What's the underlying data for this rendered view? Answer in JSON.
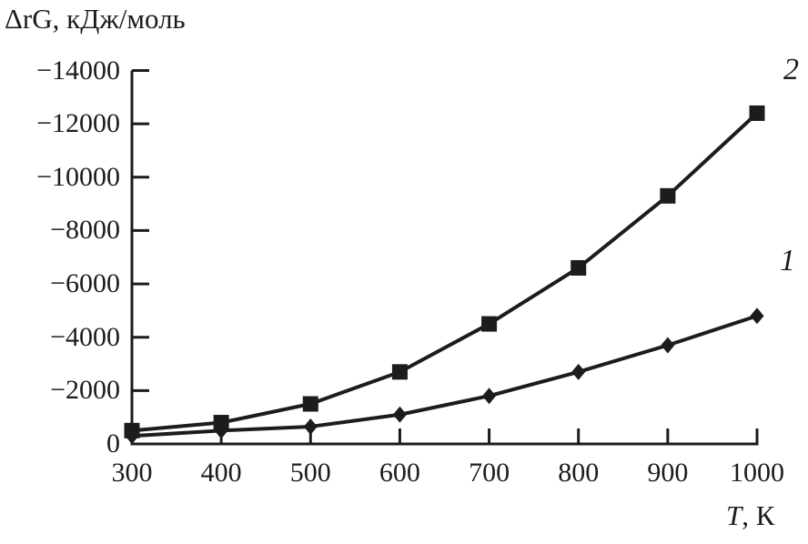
{
  "figure": {
    "y_axis_title": "ΔrG, кДж/моль",
    "x_axis_symbol": "T",
    "x_axis_suffix": ", К"
  },
  "colors": {
    "ink": "#1c1c1c",
    "background": "#ffffff"
  },
  "chart_data": {
    "type": "line",
    "title": "",
    "ylabel": "ΔrG, кДж/моль",
    "xlabel": "T, К",
    "x": [
      300,
      400,
      500,
      600,
      700,
      800,
      900,
      1000
    ],
    "xticklabels": [
      "300",
      "400",
      "500",
      "600",
      "700",
      "800",
      "900",
      "1000"
    ],
    "yticks": [
      0,
      -2000,
      -4000,
      -6000,
      -8000,
      -10000,
      -12000,
      -14000
    ],
    "yticklabels": [
      "0",
      "−2000",
      "−4000",
      "−6000",
      "−8000",
      "−10000",
      "−12000",
      "−14000"
    ],
    "xlim": [
      300,
      1000
    ],
    "ylim": [
      0,
      -14000
    ],
    "y_axis_reversed": true,
    "grid": false,
    "legend_position": "curve labels in right margin",
    "series": [
      {
        "name": "1",
        "marker": "diamond",
        "color": "#1c1c1c",
        "values": [
          -300,
          -500,
          -650,
          -1100,
          -1800,
          -2700,
          -3700,
          -4800
        ]
      },
      {
        "name": "2",
        "marker": "square",
        "color": "#1c1c1c",
        "values": [
          -500,
          -800,
          -1500,
          -2700,
          -4500,
          -6600,
          -9300,
          -12400
        ]
      }
    ],
    "annotations": [
      {
        "text": "2",
        "refers_to": "series 2",
        "position": "upper-right"
      },
      {
        "text": "1",
        "refers_to": "series 1",
        "position": "mid-right"
      }
    ]
  }
}
